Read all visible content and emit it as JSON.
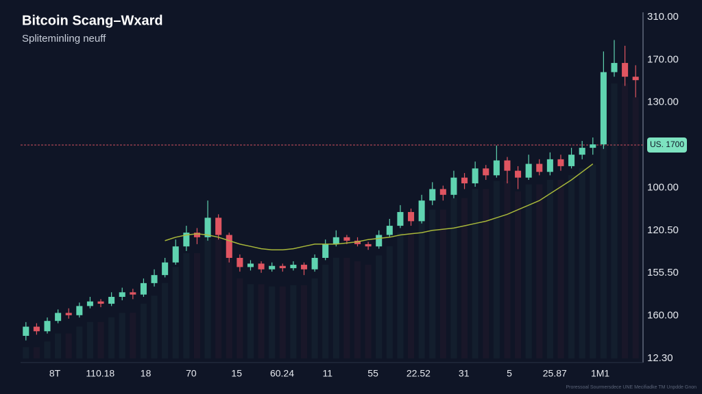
{
  "chart_data": {
    "type": "candlestick",
    "title": "Bitcoin Scang–Wxard",
    "subtitle": "Spliteminling neuff",
    "price_label": "US. 1700",
    "footer": "Proressoal Sourmersdece UNE Mecifiadke TM Unpdde Gnon",
    "ylabels": [
      "310.00",
      "170.00",
      "130.00",
      "100.00",
      "120.50",
      "155.50",
      "160.00",
      "12.30"
    ],
    "xlabels": [
      "8T",
      "110.18",
      "18",
      "70",
      "15",
      "60.24",
      "11",
      "55",
      "22.52",
      "31",
      "5",
      "25.87",
      "1M1"
    ],
    "ylim": [
      12.3,
      310
    ],
    "up_color": "#5fd3b0",
    "down_color": "#e05561",
    "ma_color": "#a9b83a",
    "open": [
      32,
      40,
      36,
      45,
      52,
      50,
      58,
      62,
      60,
      66,
      70,
      68,
      78,
      85,
      96,
      110,
      122,
      118,
      135,
      120,
      100,
      92,
      95,
      90,
      93,
      91,
      94,
      90,
      100,
      112,
      118,
      115,
      112,
      110,
      120,
      128,
      140,
      132,
      150,
      160,
      155,
      170,
      165,
      178,
      172,
      185,
      176,
      170,
      182,
      175,
      186,
      180,
      190,
      196,
      199,
      262,
      270,
      258
    ],
    "high": [
      44,
      43,
      48,
      55,
      56,
      61,
      66,
      64,
      70,
      74,
      73,
      82,
      90,
      100,
      116,
      128,
      126,
      150,
      138,
      122,
      103,
      98,
      97,
      96,
      95,
      97,
      96,
      103,
      116,
      124,
      120,
      118,
      114,
      124,
      134,
      146,
      143,
      155,
      166,
      163,
      176,
      174,
      184,
      181,
      198,
      188,
      180,
      190,
      186,
      192,
      190,
      196,
      202,
      205,
      280,
      290,
      285,
      268
    ],
    "low": [
      28,
      33,
      34,
      43,
      47,
      48,
      56,
      57,
      58,
      63,
      64,
      66,
      75,
      83,
      94,
      106,
      112,
      115,
      116,
      96,
      88,
      89,
      87,
      88,
      88,
      89,
      85,
      88,
      98,
      110,
      112,
      110,
      107,
      108,
      118,
      126,
      128,
      130,
      146,
      150,
      152,
      160,
      162,
      168,
      170,
      165,
      160,
      168,
      172,
      172,
      176,
      178,
      186,
      190,
      195,
      258,
      250,
      240
    ],
    "close": [
      40,
      36,
      45,
      52,
      50,
      58,
      62,
      60,
      66,
      70,
      68,
      78,
      85,
      96,
      110,
      122,
      118,
      135,
      120,
      100,
      92,
      95,
      90,
      93,
      91,
      94,
      90,
      100,
      112,
      118,
      115,
      112,
      110,
      120,
      128,
      140,
      132,
      150,
      160,
      155,
      170,
      165,
      178,
      172,
      185,
      176,
      170,
      182,
      175,
      186,
      180,
      190,
      196,
      199,
      262,
      270,
      258,
      255
    ],
    "moving_average": [
      null,
      null,
      null,
      null,
      null,
      null,
      null,
      null,
      null,
      null,
      null,
      null,
      null,
      115,
      118,
      120,
      121,
      120,
      118,
      115,
      112,
      110,
      108,
      107,
      107,
      108,
      110,
      112,
      112,
      112,
      113,
      114,
      116,
      117,
      118,
      120,
      121,
      122,
      124,
      125,
      126,
      128,
      130,
      132,
      135,
      138,
      142,
      146,
      150,
      156,
      162,
      168,
      175,
      182,
      null,
      null,
      null,
      null
    ]
  }
}
